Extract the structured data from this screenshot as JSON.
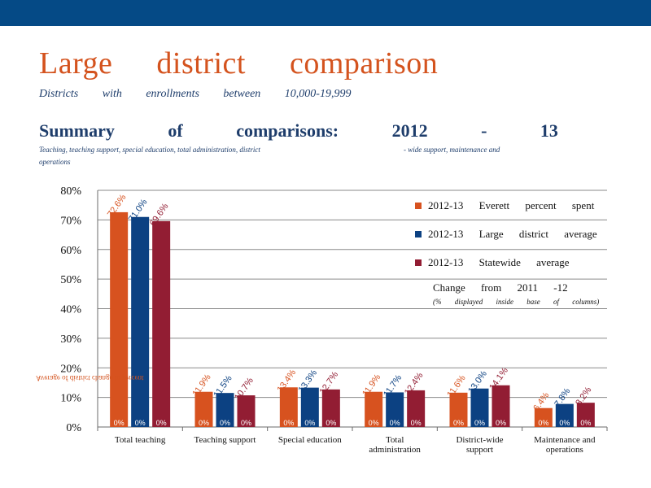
{
  "slide": {
    "title": "Large district comparison",
    "subtitle": "Districts with enrollments between 10,000-19,999",
    "section_title": "Summary of comparisons: 2012 - 13",
    "caption_a": "Teaching, teaching support, special education, total administration, district",
    "caption_b": "- wide support, maintenance and",
    "caption_c": "operations",
    "artifact_text": "Average of district change in percent",
    "colors": {
      "top_bar": "#054a86",
      "everett": "#d7521f",
      "large_district": "#0c4182",
      "statewide": "#921d33"
    }
  },
  "legend": {
    "items": [
      {
        "label": "2012-13 Everett percent spent",
        "color": "#d7521f"
      },
      {
        "label": "2012-13 Large district average",
        "color": "#0c4182"
      },
      {
        "label": "2012-13 Statewide average",
        "color": "#921d33"
      }
    ],
    "change_title": "Change from 2011 -12",
    "change_note": "(% displayed inside base of columns)"
  },
  "chart_data": {
    "type": "bar",
    "categories": [
      "Total teaching",
      "Teaching support",
      "Special education",
      "Total administration",
      "District-wide support",
      "Maintenance and operations"
    ],
    "series": [
      {
        "name": "2012-13 Everett percent spent",
        "values": [
          72.6,
          11.9,
          13.4,
          11.9,
          11.6,
          6.4
        ],
        "value_labels": [
          "72.6%",
          "11.9%",
          "13.4%",
          "11.9%",
          "11.6%",
          "6.4%"
        ],
        "change_labels": [
          "0%",
          "0%",
          "0%",
          "0%",
          "0%",
          "0%"
        ]
      },
      {
        "name": "2012-13 Large district average",
        "values": [
          71.0,
          11.5,
          13.3,
          11.7,
          13.0,
          7.8
        ],
        "value_labels": [
          "71.0%",
          "11.5%",
          "13.3%",
          "11.7%",
          "13.0%",
          "7.8%"
        ],
        "change_labels": [
          "0%",
          "0%",
          "0%",
          "0%",
          "0%",
          "0%"
        ]
      },
      {
        "name": "2012-13 Statewide average",
        "values": [
          69.6,
          10.7,
          12.7,
          12.4,
          14.1,
          8.2
        ],
        "value_labels": [
          "69.6%",
          "10.7%",
          "12.7%",
          "12.4%",
          "14.1%",
          "8.2%"
        ],
        "change_labels": [
          "0%",
          "0%",
          "0%",
          "0%",
          "0%",
          "0%"
        ]
      }
    ],
    "y_ticks": [
      "0%",
      "10%",
      "20%",
      "30%",
      "40%",
      "50%",
      "60%",
      "70%",
      "80%"
    ],
    "ylim": [
      0,
      80
    ],
    "grid": true,
    "legend_position": "right"
  }
}
